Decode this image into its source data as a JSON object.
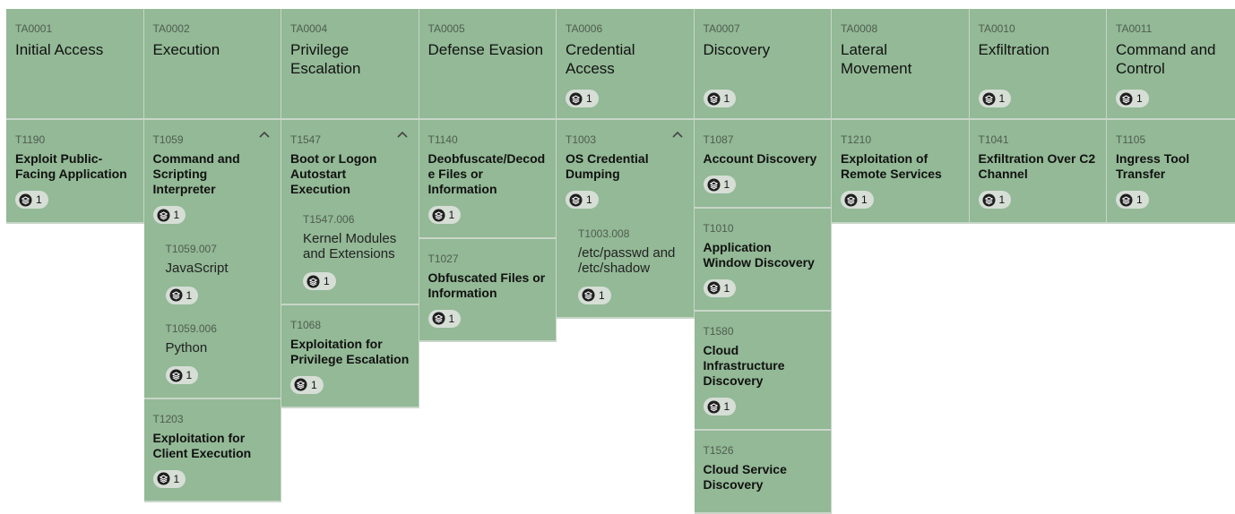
{
  "columns": [
    {
      "id": "TA0001",
      "name": "Initial Access",
      "techniques": [
        {
          "id": "T1190",
          "name": "Exploit Public-Facing Application",
          "count": 1
        }
      ]
    },
    {
      "id": "TA0002",
      "name": "Execution",
      "techniques": [
        {
          "id": "T1059",
          "name": "Command and Scripting Interpreter",
          "count": 1,
          "subtechniques": [
            {
              "id": "T1059.007",
              "name": "JavaScript",
              "count": 1
            },
            {
              "id": "T1059.006",
              "name": "Python",
              "count": 1
            }
          ]
        },
        {
          "id": "T1203",
          "name": "Exploitation for Client Execution",
          "count": 1
        }
      ]
    },
    {
      "id": "TA0004",
      "name": "Privilege Escalation",
      "techniques": [
        {
          "id": "T1547",
          "name": "Boot or Logon Autostart Execution",
          "subtechniques": [
            {
              "id": "T1547.006",
              "name": "Kernel Modules and Extensions",
              "count": 1
            }
          ]
        },
        {
          "id": "T1068",
          "name": "Exploitation for Privilege Escalation",
          "count": 1
        }
      ]
    },
    {
      "id": "TA0005",
      "name": "Defense Evasion",
      "techniques": [
        {
          "id": "T1140",
          "name": "Deobfuscate/Decode Files or Information",
          "count": 1
        },
        {
          "id": "T1027",
          "name": "Obfuscated Files or Information",
          "count": 1
        }
      ]
    },
    {
      "id": "TA0006",
      "name": "Credential Access",
      "count": 1,
      "techniques": [
        {
          "id": "T1003",
          "name": "OS Credential Dumping",
          "count": 1,
          "subtechniques": [
            {
              "id": "T1003.008",
              "name": "/etc/passwd and /etc/shadow",
              "count": 1
            }
          ]
        }
      ]
    },
    {
      "id": "TA0007",
      "name": "Discovery",
      "count": 1,
      "techniques": [
        {
          "id": "T1087",
          "name": "Account Discovery",
          "count": 1
        },
        {
          "id": "T1010",
          "name": "Application Window Discovery",
          "count": 1
        },
        {
          "id": "T1580",
          "name": "Cloud Infrastructure Discovery",
          "count": 1
        },
        {
          "id": "T1526",
          "name": "Cloud Service Discovery"
        }
      ]
    },
    {
      "id": "TA0008",
      "name": "Lateral Movement",
      "techniques": [
        {
          "id": "T1210",
          "name": "Exploitation of Remote Services",
          "count": 1
        }
      ]
    },
    {
      "id": "TA0010",
      "name": "Exfiltration",
      "count": 1,
      "techniques": [
        {
          "id": "T1041",
          "name": "Exfiltration Over C2 Channel",
          "count": 1
        }
      ]
    },
    {
      "id": "TA0011",
      "name": "Command and Control",
      "count": 1,
      "techniques": [
        {
          "id": "T1105",
          "name": "Ingress Tool Transfer",
          "count": 1
        }
      ]
    }
  ]
}
